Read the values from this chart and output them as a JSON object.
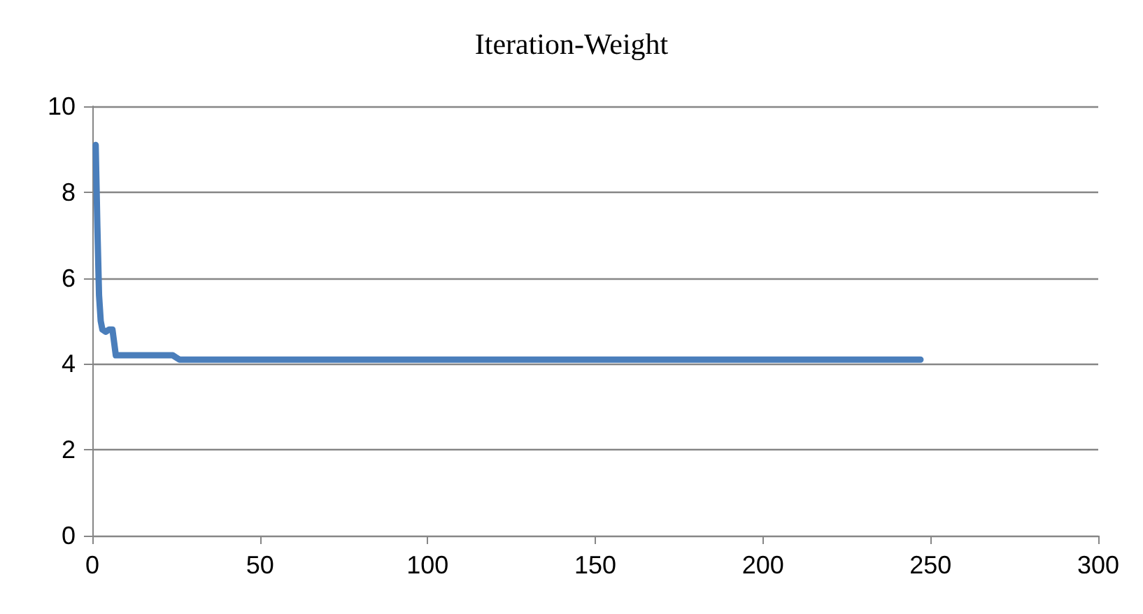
{
  "chart_data": {
    "type": "line",
    "title": "Iteration-Weight",
    "x": [
      1,
      1.5,
      2,
      2.5,
      3,
      4,
      5,
      6,
      6.5,
      7,
      24,
      25,
      26,
      247
    ],
    "series": [
      {
        "color": "#4a7ebb",
        "values": [
          9.1,
          7.2,
          5.6,
          5,
          4.8,
          4.75,
          4.8,
          4.8,
          4.5,
          4.2,
          4.2,
          4.15,
          4.1,
          4.1
        ]
      }
    ],
    "xlim": [
      0,
      300
    ],
    "xticks": [
      0,
      50,
      100,
      150,
      200,
      250,
      300
    ],
    "ylim": [
      0,
      10
    ],
    "yticks": [
      0,
      2,
      4,
      6,
      8,
      10
    ],
    "grid": "y",
    "marker": "none",
    "line_style": "solid"
  }
}
